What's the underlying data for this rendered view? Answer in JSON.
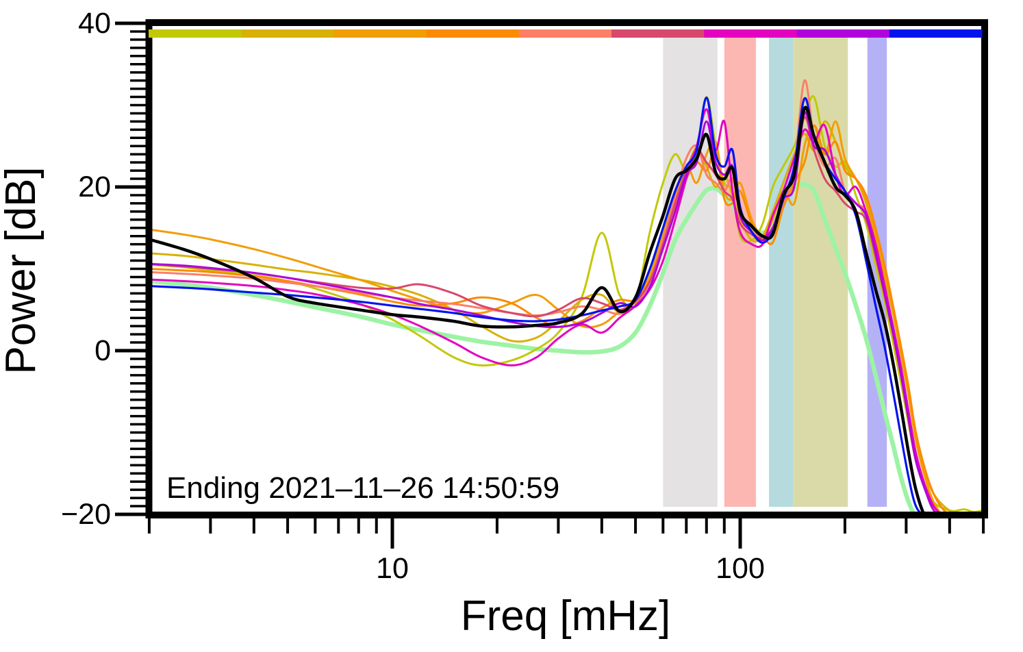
{
  "figure": {
    "y_axis": {
      "label": "Power [dB]",
      "ticks": [
        {
          "label": "40",
          "value": 40
        },
        {
          "label": "20",
          "value": 20
        },
        {
          "label": "0",
          "value": 0
        },
        {
          "label": "−20",
          "value": -20
        }
      ]
    },
    "x_axis": {
      "label": "Freq [mHz]",
      "ticks": [
        {
          "label": "10",
          "value": 10
        },
        {
          "label": "100",
          "value": 100
        }
      ]
    },
    "annotation": "Ending 2021–11–26 14:50:59"
  },
  "chart_data": {
    "type": "line",
    "title": "",
    "xlabel": "Freq [mHz]",
    "ylabel": "Power [dB]",
    "x_scale": "log",
    "x_unit": "mHz",
    "y_unit": "dB",
    "xlim_mhz": [
      1.95,
      503
    ],
    "ylim_db": [
      -20,
      40
    ],
    "grid": false,
    "legend": "none",
    "annotation": "Ending 2021–11–26 14:50:59",
    "x_mhz": [
      2,
      2.5,
      3,
      4,
      5,
      6,
      8,
      10,
      12,
      15,
      18,
      22,
      26,
      30,
      35,
      40,
      45,
      50,
      55,
      60,
      65,
      70,
      75,
      80,
      85,
      90,
      95,
      100,
      108,
      116,
      124,
      133,
      143,
      153,
      163,
      175,
      188,
      200,
      215,
      230,
      245,
      260,
      275,
      290,
      305,
      320,
      340,
      360,
      385,
      410,
      440,
      470,
      500
    ],
    "series": [
      {
        "name": "reference-smooth",
        "color": "#9df3a4",
        "width": 6.5,
        "values": [
          8.5,
          8.1,
          7.7,
          6.8,
          6.0,
          5.3,
          4.2,
          3.2,
          2.5,
          1.7,
          1.1,
          0.6,
          0.2,
          0.0,
          -0.2,
          -0.1,
          0.5,
          2.2,
          5.5,
          9.5,
          13.5,
          16.0,
          18.0,
          19.6,
          19.8,
          19.0,
          17.8,
          16.2,
          15.0,
          14.4,
          15.2,
          18.2,
          19.9,
          20.3,
          19.5,
          16.0,
          12.5,
          9.5,
          5.5,
          1.5,
          -3.0,
          -7.5,
          -11.5,
          -15.5,
          -18.5,
          -20.2,
          -20.2,
          -20.2,
          -20.2,
          -20.2,
          -20.2,
          -20.2,
          -20.2
        ]
      },
      {
        "name": "segment-1",
        "color": "#c1c905",
        "width": 3,
        "values": [
          10.5,
          10.2,
          9.8,
          9.2,
          8.5,
          7.6,
          5.8,
          3.8,
          1.8,
          -0.8,
          -1.8,
          -1.2,
          0.2,
          2.2,
          6.5,
          14.4,
          6.8,
          6.2,
          14.5,
          20.5,
          24.0,
          22.0,
          24.5,
          31.0,
          25.0,
          20.5,
          19.5,
          14.0,
          13.5,
          15.5,
          20.0,
          22.5,
          25.0,
          28.5,
          31.0,
          25.0,
          22.5,
          23.0,
          19.0,
          15.5,
          10.5,
          6.0,
          1.0,
          -4.0,
          -9.0,
          -13.5,
          -16.5,
          -18.5,
          -19.3,
          -19.6,
          -19.4,
          -19.7,
          -19.5
        ]
      },
      {
        "name": "segment-2",
        "color": "#d8b107",
        "width": 3,
        "values": [
          11.9,
          11.6,
          11.2,
          10.5,
          9.9,
          9.5,
          8.7,
          7.8,
          6.8,
          5.0,
          3.0,
          1.2,
          1.6,
          3.6,
          6.2,
          6.8,
          4.6,
          5.6,
          9.5,
          14.5,
          19.0,
          22.0,
          24.8,
          22.5,
          20.0,
          21.5,
          19.0,
          16.0,
          13.5,
          14.0,
          17.0,
          20.5,
          24.0,
          26.5,
          24.5,
          28.0,
          25.5,
          22.5,
          21.0,
          18.0,
          13.5,
          9.0,
          4.5,
          -0.5,
          -5.5,
          -10.5,
          -15.0,
          -17.5,
          -19.0,
          -19.8,
          -20.2,
          -20.2,
          -20.2
        ]
      },
      {
        "name": "segment-3",
        "color": "#f29d05",
        "width": 3,
        "values": [
          14.8,
          14.2,
          13.6,
          12.4,
          11.3,
          10.3,
          8.7,
          7.3,
          6.2,
          5.0,
          4.6,
          5.8,
          6.8,
          5.0,
          3.0,
          3.2,
          4.8,
          6.2,
          9.0,
          14.0,
          18.5,
          22.5,
          20.5,
          24.0,
          25.5,
          19.5,
          18.5,
          20.5,
          16.0,
          14.0,
          16.0,
          19.5,
          18.0,
          25.0,
          27.5,
          24.0,
          28.0,
          23.5,
          21.0,
          18.5,
          14.0,
          9.5,
          5.0,
          0.0,
          -5.5,
          -11.0,
          -15.5,
          -18.5,
          -20.2,
          -20.2,
          -20.2,
          -20.2,
          -20.2
        ]
      },
      {
        "name": "segment-4",
        "color": "#fb8b03",
        "width": 3,
        "values": [
          10.0,
          9.8,
          9.6,
          9.1,
          8.5,
          7.9,
          6.9,
          6.0,
          5.5,
          5.8,
          6.5,
          5.8,
          4.0,
          2.9,
          3.6,
          5.2,
          6.2,
          6.2,
          8.5,
          13.0,
          17.5,
          21.0,
          23.0,
          22.0,
          24.5,
          18.5,
          18.0,
          19.5,
          15.5,
          14.0,
          13.2,
          17.5,
          20.5,
          23.0,
          27.5,
          24.0,
          25.5,
          22.0,
          21.0,
          19.0,
          15.0,
          10.5,
          5.5,
          0.5,
          -4.5,
          -10.0,
          -14.5,
          -17.5,
          -19.5,
          -20.2,
          -20.2,
          -20.2,
          -20.2
        ]
      },
      {
        "name": "segment-5",
        "color": "#fc7f66",
        "width": 3,
        "values": [
          9.6,
          9.4,
          9.2,
          8.8,
          8.3,
          7.9,
          7.1,
          6.5,
          6.1,
          5.7,
          5.2,
          4.6,
          4.3,
          4.7,
          5.4,
          5.0,
          4.5,
          5.5,
          8.5,
          13.5,
          19.0,
          23.5,
          25.0,
          21.5,
          20.5,
          19.5,
          21.0,
          17.0,
          15.0,
          13.8,
          15.0,
          18.0,
          22.5,
          33.0,
          26.0,
          22.5,
          23.5,
          19.5,
          18.0,
          17.0,
          12.5,
          7.8,
          3.0,
          -2.0,
          -7.5,
          -12.5,
          -16.5,
          -19.0,
          -20.2,
          -20.2,
          -20.2,
          -20.2,
          -20.2
        ]
      },
      {
        "name": "segment-6",
        "color": "#d8486d",
        "width": 3,
        "values": [
          10.6,
          10.3,
          10.0,
          9.5,
          8.9,
          8.4,
          7.7,
          7.6,
          8.1,
          7.0,
          5.5,
          4.6,
          4.2,
          5.0,
          6.4,
          5.8,
          5.0,
          6.0,
          8.5,
          13.0,
          18.0,
          22.0,
          24.5,
          23.0,
          21.5,
          19.5,
          18.5,
          15.5,
          14.2,
          13.8,
          15.0,
          18.5,
          22.0,
          28.5,
          24.5,
          21.0,
          19.5,
          18.0,
          17.0,
          16.0,
          11.5,
          6.8,
          2.0,
          -3.0,
          -8.0,
          -13.0,
          -16.5,
          -19.0,
          -20.2,
          -20.2,
          -20.2,
          -20.2,
          -20.2
        ]
      },
      {
        "name": "segment-7",
        "color": "#e303c0",
        "width": 3,
        "values": [
          8.7,
          8.5,
          8.3,
          7.9,
          7.4,
          6.9,
          5.7,
          4.4,
          3.0,
          1.0,
          -0.8,
          -1.8,
          -0.8,
          1.5,
          3.2,
          2.2,
          4.0,
          5.5,
          7.5,
          11.0,
          16.0,
          21.0,
          25.0,
          29.5,
          24.5,
          28.0,
          19.5,
          14.5,
          13.0,
          13.0,
          16.5,
          19.5,
          23.5,
          27.0,
          25.5,
          27.5,
          21.5,
          19.0,
          20.0,
          17.0,
          13.0,
          8.0,
          3.0,
          -2.0,
          -7.5,
          -12.5,
          -16.5,
          -19.0,
          -20.2,
          -20.2,
          -20.2,
          -20.2,
          -20.2
        ]
      },
      {
        "name": "segment-8",
        "color": "#b004dc",
        "width": 3,
        "values": [
          10.6,
          10.4,
          10.1,
          9.5,
          8.9,
          8.3,
          7.3,
          6.5,
          5.7,
          5.0,
          4.3,
          3.5,
          3.0,
          2.9,
          3.4,
          4.6,
          5.8,
          5.4,
          7.8,
          12.5,
          17.0,
          21.5,
          23.0,
          28.0,
          23.0,
          21.5,
          22.5,
          16.5,
          14.5,
          13.5,
          15.0,
          18.5,
          20.0,
          29.0,
          25.0,
          24.5,
          21.5,
          19.5,
          18.0,
          16.5,
          12.0,
          7.0,
          2.2,
          -3.0,
          -8.5,
          -13.5,
          -17.0,
          -19.5,
          -20.2,
          -20.2,
          -20.2,
          -20.2,
          -20.2
        ]
      },
      {
        "name": "segment-9",
        "color": "#0414ee",
        "width": 3.2,
        "values": [
          7.9,
          7.7,
          7.5,
          7.1,
          6.8,
          6.5,
          6.0,
          5.5,
          5.1,
          4.6,
          4.1,
          3.7,
          3.6,
          3.8,
          4.3,
          4.9,
          5.4,
          6.2,
          10.0,
          15.0,
          19.5,
          22.5,
          24.5,
          30.9,
          24.0,
          22.5,
          24.5,
          17.5,
          14.5,
          13.2,
          14.5,
          18.5,
          22.5,
          30.8,
          26.0,
          23.0,
          21.0,
          19.5,
          16.5,
          11.0,
          5.5,
          0.5,
          -5.0,
          -10.5,
          -15.5,
          -19.0,
          -20.2,
          -20.2,
          -20.2,
          -20.2,
          -20.2,
          -20.2,
          -20.2
        ]
      },
      {
        "name": "mean",
        "color": "#000000",
        "width": 4.5,
        "values": [
          13.6,
          12.4,
          11.2,
          8.9,
          6.6,
          5.8,
          5.0,
          4.4,
          4.1,
          3.6,
          3.0,
          2.9,
          3.1,
          3.4,
          4.5,
          7.7,
          4.8,
          6.5,
          12.0,
          16.5,
          21.0,
          22.0,
          23.5,
          26.4,
          21.8,
          21.0,
          22.3,
          17.0,
          15.2,
          14.0,
          14.2,
          19.0,
          21.5,
          29.6,
          26.2,
          23.0,
          20.0,
          19.0,
          17.0,
          12.0,
          7.5,
          3.5,
          -1.5,
          -7.0,
          -12.5,
          -17.0,
          -20.2,
          -20.2,
          -20.2,
          -20.2,
          -20.2,
          -20.2,
          -20.2
        ]
      }
    ],
    "shaded_bands": [
      {
        "name": "band-1",
        "color": "#e4e2e2",
        "f_lo": 60,
        "f_hi": 86
      },
      {
        "name": "band-2",
        "color": "#fdb7b3",
        "f_lo": 90,
        "f_hi": 111
      },
      {
        "name": "band-3",
        "color": "#b5dbde",
        "f_lo": 121,
        "f_hi": 142
      },
      {
        "name": "band-4",
        "color": "#dadaa8",
        "f_lo": 142,
        "f_hi": 204
      },
      {
        "name": "band-5",
        "color": "#b5b1f7",
        "f_lo": 232,
        "f_hi": 264
      }
    ],
    "top_bar_colors": [
      "#c1c905",
      "#d8b107",
      "#f29d05",
      "#fb8b03",
      "#fc7f66",
      "#d8486d",
      "#e303c0",
      "#b004dc",
      "#0414ee"
    ]
  }
}
